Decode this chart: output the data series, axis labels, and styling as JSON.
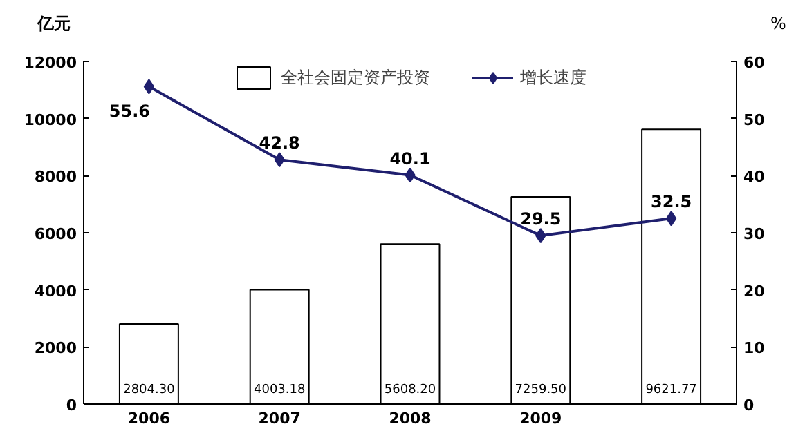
{
  "chart_data": {
    "type": "bar",
    "categories": [
      "2006",
      "2007",
      "2008",
      "2009",
      null
    ],
    "ylabel": "亿元",
    "y2label": "%",
    "series": [
      {
        "name": "全社会固定资产投资",
        "color": "#ffffff",
        "values": [
          2804.3,
          4003.18,
          5608.2,
          7259.5,
          9621.77
        ],
        "value_labels": [
          "2804.30",
          "4003.18",
          "5608.20",
          "7259.50",
          "9621.77"
        ]
      },
      {
        "name": "增长速度",
        "type": "line",
        "axis": "y2",
        "color": "#1f1f6e",
        "marker": "diamond",
        "values": [
          55.6,
          42.8,
          40.1,
          29.5,
          32.5
        ],
        "value_labels": [
          "55.6",
          "42.8",
          "40.1",
          "29.5",
          "32.5"
        ]
      }
    ],
    "ylim": [
      0,
      12000
    ],
    "yticks": [
      0,
      2000,
      4000,
      6000,
      8000,
      10000,
      12000
    ],
    "y2lim": [
      0,
      60
    ],
    "y2ticks": [
      0,
      10,
      20,
      30,
      40,
      50,
      60
    ],
    "grid": false,
    "legend": "top"
  }
}
